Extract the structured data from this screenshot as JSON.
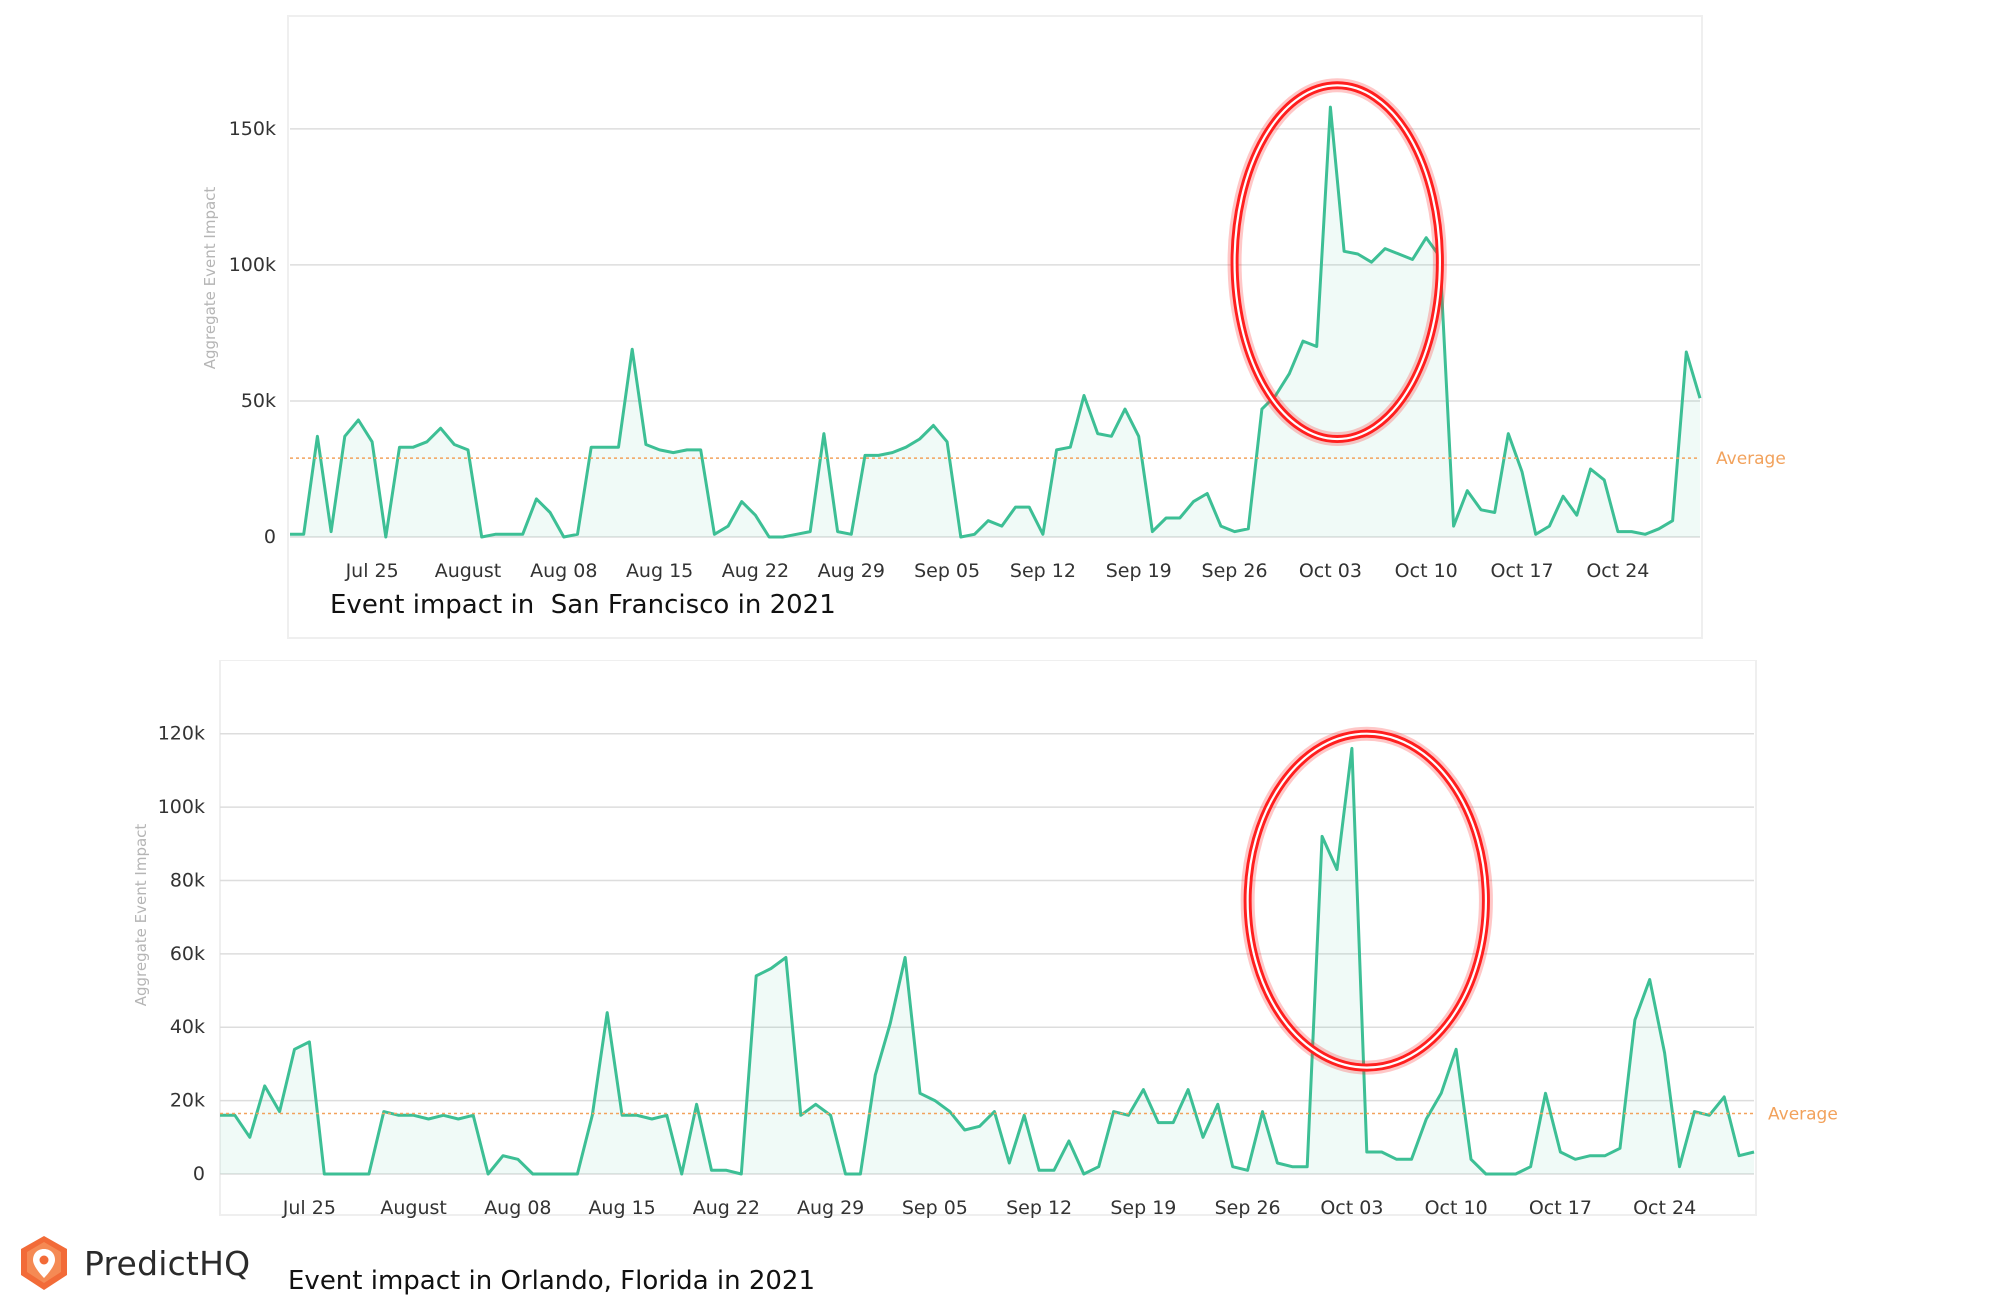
{
  "chart_data": [
    {
      "type": "area",
      "caption": "Event impact in  San Francisco in 2021",
      "ylabel": "Aggregate Event Impact",
      "ylim": [
        0,
        190000
      ],
      "yticks": [
        0,
        50000,
        100000,
        150000
      ],
      "ytick_labels": [
        "0",
        "50k",
        "100k",
        "150k"
      ],
      "x_tick_labels": [
        "Jul 25",
        "August",
        "Aug 08",
        "Aug 15",
        "Aug 22",
        "Aug 29",
        "Sep 05",
        "Sep 12",
        "Sep 19",
        "Sep 26",
        "Oct 03",
        "Oct 10",
        "Oct 17",
        "Oct 24"
      ],
      "x_tick_dates": [
        "2021-07-25",
        "2021-08-01",
        "2021-08-08",
        "2021-08-15",
        "2021-08-22",
        "2021-08-29",
        "2021-09-05",
        "2021-09-12",
        "2021-09-19",
        "2021-09-26",
        "2021-10-03",
        "2021-10-10",
        "2021-10-17",
        "2021-10-24"
      ],
      "x_start": "2021-07-19",
      "x_end": "2021-10-30",
      "series_color": "#3dbf95",
      "average": 29000,
      "average_label": "Average",
      "average_color": "#f2a25c",
      "highlight_color": "#ff1f1f",
      "highlight": {
        "x_from": "2021-09-26",
        "x_to": "2021-10-11",
        "y_from": 36000,
        "y_to": 166000
      },
      "grid": true,
      "series": [
        {
          "x": [
            "2021-07-19",
            "2021-07-20",
            "2021-07-21",
            "2021-07-22",
            "2021-07-23",
            "2021-07-24",
            "2021-07-25",
            "2021-07-26",
            "2021-07-27",
            "2021-07-28",
            "2021-07-29",
            "2021-07-30",
            "2021-07-31",
            "2021-08-01",
            "2021-08-02",
            "2021-08-03",
            "2021-08-04",
            "2021-08-05",
            "2021-08-06",
            "2021-08-07",
            "2021-08-08",
            "2021-08-09",
            "2021-08-10",
            "2021-08-11",
            "2021-08-12",
            "2021-08-13",
            "2021-08-14",
            "2021-08-15",
            "2021-08-16",
            "2021-08-17",
            "2021-08-18",
            "2021-08-19",
            "2021-08-20",
            "2021-08-21",
            "2021-08-22",
            "2021-08-23",
            "2021-08-24",
            "2021-08-25",
            "2021-08-26",
            "2021-08-27",
            "2021-08-28",
            "2021-08-29",
            "2021-08-30",
            "2021-08-31",
            "2021-09-01",
            "2021-09-02",
            "2021-09-03",
            "2021-09-04",
            "2021-09-05",
            "2021-09-06",
            "2021-09-07",
            "2021-09-08",
            "2021-09-09",
            "2021-09-10",
            "2021-09-11",
            "2021-09-12",
            "2021-09-13",
            "2021-09-14",
            "2021-09-15",
            "2021-09-16",
            "2021-09-17",
            "2021-09-18",
            "2021-09-19",
            "2021-09-20",
            "2021-09-21",
            "2021-09-22",
            "2021-09-23",
            "2021-09-24",
            "2021-09-25",
            "2021-09-26",
            "2021-09-27",
            "2021-09-28",
            "2021-09-29",
            "2021-09-30",
            "2021-10-01",
            "2021-10-02",
            "2021-10-03",
            "2021-10-04",
            "2021-10-05",
            "2021-10-06",
            "2021-10-07",
            "2021-10-08",
            "2021-10-09",
            "2021-10-10",
            "2021-10-11",
            "2021-10-12",
            "2021-10-13",
            "2021-10-14",
            "2021-10-15",
            "2021-10-16",
            "2021-10-17",
            "2021-10-18",
            "2021-10-19",
            "2021-10-20",
            "2021-10-21",
            "2021-10-22",
            "2021-10-23",
            "2021-10-24",
            "2021-10-25",
            "2021-10-26",
            "2021-10-27",
            "2021-10-28",
            "2021-10-29",
            "2021-10-30"
          ],
          "values": [
            1000,
            1000,
            37000,
            2000,
            37000,
            43000,
            35000,
            0,
            33000,
            33000,
            35000,
            40000,
            34000,
            32000,
            0,
            1000,
            1000,
            1000,
            14000,
            9000,
            0,
            1000,
            33000,
            33000,
            33000,
            69000,
            34000,
            32000,
            31000,
            32000,
            32000,
            1000,
            4000,
            13000,
            8000,
            0,
            0,
            1000,
            2000,
            38000,
            2000,
            1000,
            30000,
            30000,
            31000,
            33000,
            36000,
            41000,
            35000,
            0,
            1000,
            6000,
            4000,
            11000,
            11000,
            1000,
            32000,
            33000,
            52000,
            38000,
            37000,
            47000,
            37000,
            2000,
            7000,
            7000,
            13000,
            16000,
            4000,
            2000,
            3000,
            47000,
            52000,
            60000,
            72000,
            70000,
            158000,
            105000,
            104000,
            101000,
            106000,
            104000,
            102000,
            110000,
            103000,
            4000,
            17000,
            10000,
            9000,
            38000,
            24000,
            1000,
            4000,
            15000,
            8000,
            25000,
            21000,
            2000,
            2000,
            1000,
            3000,
            6000,
            68000,
            51000
          ]
        }
      ]
    },
    {
      "type": "area",
      "caption": "Event impact in Orlando, Florida in 2021",
      "ylabel": "Aggregate Event Impact",
      "ylim": [
        0,
        136000
      ],
      "yticks": [
        0,
        20000,
        40000,
        60000,
        80000,
        100000,
        120000
      ],
      "ytick_labels": [
        "0",
        "20k",
        "40k",
        "60k",
        "80k",
        "100k",
        "120k"
      ],
      "x_tick_labels": [
        "Jul 25",
        "August",
        "Aug 08",
        "Aug 15",
        "Aug 22",
        "Aug 29",
        "Sep 05",
        "Sep 12",
        "Sep 19",
        "Sep 26",
        "Oct 03",
        "Oct 10",
        "Oct 17",
        "Oct 24"
      ],
      "x_tick_dates": [
        "2021-07-25",
        "2021-08-01",
        "2021-08-08",
        "2021-08-15",
        "2021-08-22",
        "2021-08-29",
        "2021-09-05",
        "2021-09-12",
        "2021-09-19",
        "2021-09-26",
        "2021-10-03",
        "2021-10-10",
        "2021-10-17",
        "2021-10-24"
      ],
      "x_start": "2021-07-19",
      "x_end": "2021-10-30",
      "series_color": "#3dbf95",
      "average": 16500,
      "average_label": "Average",
      "average_color": "#f2a25c",
      "highlight_color": "#ff1f1f",
      "highlight": {
        "x_from": "2021-09-26",
        "x_to": "2021-10-12",
        "y_from": 29000,
        "y_to": 120000
      },
      "grid": true,
      "series": [
        {
          "x": [
            "2021-07-19",
            "2021-07-20",
            "2021-07-21",
            "2021-07-22",
            "2021-07-23",
            "2021-07-24",
            "2021-07-25",
            "2021-07-26",
            "2021-07-27",
            "2021-07-28",
            "2021-07-29",
            "2021-07-30",
            "2021-07-31",
            "2021-08-01",
            "2021-08-02",
            "2021-08-03",
            "2021-08-04",
            "2021-08-05",
            "2021-08-06",
            "2021-08-07",
            "2021-08-08",
            "2021-08-09",
            "2021-08-10",
            "2021-08-11",
            "2021-08-12",
            "2021-08-13",
            "2021-08-14",
            "2021-08-15",
            "2021-08-16",
            "2021-08-17",
            "2021-08-18",
            "2021-08-19",
            "2021-08-20",
            "2021-08-21",
            "2021-08-22",
            "2021-08-23",
            "2021-08-24",
            "2021-08-25",
            "2021-08-26",
            "2021-08-27",
            "2021-08-28",
            "2021-08-29",
            "2021-08-30",
            "2021-08-31",
            "2021-09-01",
            "2021-09-02",
            "2021-09-03",
            "2021-09-04",
            "2021-09-05",
            "2021-09-06",
            "2021-09-07",
            "2021-09-08",
            "2021-09-09",
            "2021-09-10",
            "2021-09-11",
            "2021-09-12",
            "2021-09-13",
            "2021-09-14",
            "2021-09-15",
            "2021-09-16",
            "2021-09-17",
            "2021-09-18",
            "2021-09-19",
            "2021-09-20",
            "2021-09-21",
            "2021-09-22",
            "2021-09-23",
            "2021-09-24",
            "2021-09-25",
            "2021-09-26",
            "2021-09-27",
            "2021-09-28",
            "2021-09-29",
            "2021-09-30",
            "2021-10-01",
            "2021-10-02",
            "2021-10-03",
            "2021-10-04",
            "2021-10-05",
            "2021-10-06",
            "2021-10-07",
            "2021-10-08",
            "2021-10-09",
            "2021-10-10",
            "2021-10-11",
            "2021-10-12",
            "2021-10-13",
            "2021-10-14",
            "2021-10-15",
            "2021-10-16",
            "2021-10-17",
            "2021-10-18",
            "2021-10-19",
            "2021-10-20",
            "2021-10-21",
            "2021-10-22",
            "2021-10-23",
            "2021-10-24",
            "2021-10-25",
            "2021-10-26",
            "2021-10-27",
            "2021-10-28",
            "2021-10-29",
            "2021-10-30"
          ],
          "values": [
            16000,
            16000,
            10000,
            24000,
            17000,
            34000,
            36000,
            0,
            0,
            0,
            0,
            17000,
            16000,
            16000,
            15000,
            16000,
            15000,
            16000,
            0,
            5000,
            4000,
            0,
            0,
            0,
            0,
            16000,
            44000,
            16000,
            16000,
            15000,
            16000,
            0,
            19000,
            1000,
            1000,
            0,
            54000,
            56000,
            59000,
            16000,
            19000,
            16000,
            0,
            0,
            27000,
            41000,
            59000,
            22000,
            20000,
            17000,
            12000,
            13000,
            17000,
            3000,
            16000,
            1000,
            1000,
            9000,
            0,
            2000,
            17000,
            16000,
            23000,
            14000,
            14000,
            23000,
            10000,
            19000,
            2000,
            1000,
            17000,
            3000,
            2000,
            2000,
            92000,
            83000,
            116000,
            6000,
            6000,
            4000,
            4000,
            15000,
            22000,
            34000,
            4000,
            0,
            0,
            0,
            2000,
            22000,
            6000,
            4000,
            5000,
            5000,
            7000,
            42000,
            53000,
            33000,
            2000,
            17000,
            16000,
            21000,
            5000,
            6000
          ]
        }
      ]
    }
  ],
  "brand": {
    "name": "PredictHQ",
    "icon": "location-pin-logo",
    "color": "#f26b38"
  }
}
